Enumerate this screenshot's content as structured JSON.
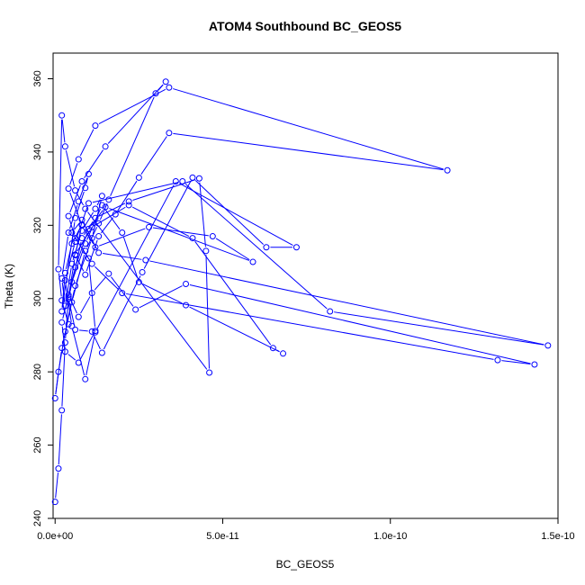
{
  "chart_data": {
    "type": "line",
    "title": "ATOM4 Southbound BC_GEOS5",
    "xlabel": "BC_GEOS5",
    "ylabel": "Theta (K)",
    "xlim": [
      -6e-13,
      1.5e-10
    ],
    "ylim": [
      240,
      367
    ],
    "x_ticks": [
      0,
      5e-11,
      1e-10,
      1.5e-10
    ],
    "x_tick_labels": [
      "0.0e+00",
      "5.0e-11",
      "1.0e-10",
      "1.5e-10"
    ],
    "y_ticks": [
      240,
      260,
      280,
      300,
      320,
      340,
      360
    ],
    "y_tick_labels": [
      "240",
      "260",
      "280",
      "300",
      "320",
      "340",
      "360"
    ],
    "grid": false,
    "legend": "none",
    "series_color": "#0000ff",
    "marker": "open-circle",
    "x": [
      0.0,
      1e-12,
      2e-12,
      3e-12,
      4e-12,
      6e-12,
      8e-12,
      5e-12,
      3e-12,
      2e-12,
      6e-12,
      9e-12,
      1e-11,
      7e-12,
      4e-12,
      2e-12,
      3e-12,
      5e-12,
      8e-12,
      1.2e-11,
      1.4e-11,
      1.1e-11,
      6e-12,
      3e-12,
      1e-12,
      0.0,
      2e-12,
      5e-12,
      9e-12,
      1.3e-11,
      1.6e-11,
      3e-11,
      3.3e-11,
      1.5e-11,
      8e-12,
      4e-12,
      6e-12,
      1e-11,
      1.2e-11,
      7e-12,
      3e-12,
      2e-12,
      5e-12,
      9e-12,
      1.4e-11,
      2e-11,
      2.5e-11,
      3.9e-11,
      6.8e-11,
      6.5e-11,
      4.1e-11,
      2.2e-11,
      1.1e-11,
      6e-12,
      9e-12,
      1.3e-11,
      1.8e-11,
      2.5e-11,
      3.4e-11,
      1.17e-10,
      3.4e-11,
      1.2e-11,
      7e-12,
      4e-12,
      8e-12,
      1.2e-11,
      2.8e-11,
      4.7e-11,
      5.9e-11,
      1.5e-11,
      1e-11,
      6e-12,
      4e-12,
      7e-12,
      1.1e-11,
      1.6e-11,
      2.4e-11,
      3.9e-11,
      1.43e-10,
      1.32e-10,
      2e-11,
      1.1e-11,
      5e-12,
      8e-12,
      1.3e-11,
      2.7e-11,
      1.47e-10,
      8.2e-11,
      3.8e-11,
      1e-11,
      6e-12,
      3e-12,
      5e-12,
      9e-12,
      1.2e-11,
      3.6e-11,
      7.2e-11,
      6.3e-11,
      4.1e-11,
      2.6e-11,
      1.4e-11,
      1.1e-11,
      6e-12,
      4e-12,
      8e-12,
      1.2e-11,
      2.2e-11,
      4.3e-11,
      4.5e-11,
      4.6e-11,
      9e-12,
      6e-12,
      3e-12,
      2e-12,
      1e-12,
      2e-12,
      4e-12
    ],
    "y": [
      244.5,
      253.6,
      269.5,
      288.0,
      300.5,
      311.8,
      320.2,
      315.0,
      307.0,
      296.5,
      322.0,
      330.2,
      334.0,
      326.5,
      318.0,
      305.5,
      298.0,
      309.5,
      318.5,
      324.5,
      328.0,
      316.5,
      303.5,
      291.0,
      280.0,
      272.8,
      286.5,
      299.0,
      313.0,
      320.5,
      327.0,
      356.0,
      359.2,
      341.5,
      332.0,
      322.5,
      316.5,
      311.0,
      291.2,
      282.5,
      285.5,
      293.5,
      304.5,
      315.0,
      325.5,
      318.0,
      304.5,
      298.2,
      285.0,
      286.5,
      316.5,
      325.5,
      319.5,
      312.0,
      306.5,
      317.0,
      323.0,
      333.0,
      345.2,
      335.0,
      357.6,
      347.2,
      338.0,
      330.0,
      320.0,
      314.0,
      319.5,
      317.0,
      310.0,
      325.0,
      319.0,
      308.5,
      301.0,
      295.0,
      301.5,
      306.8,
      297.0,
      304.0,
      282.0,
      283.2,
      301.5,
      309.5,
      318.0,
      321.5,
      312.5,
      310.5,
      287.2,
      296.5,
      332.0,
      326.0,
      315.5,
      305.0,
      292.5,
      278.0,
      290.8,
      332.0,
      314.0,
      314.0,
      333.0,
      307.2,
      285.2,
      291.0,
      291.5,
      300.0,
      316.5,
      322.0,
      326.5,
      332.8,
      313.0,
      279.8,
      324.5,
      329.5,
      341.5,
      350.0,
      308.0,
      299.5,
      293.0
    ]
  }
}
